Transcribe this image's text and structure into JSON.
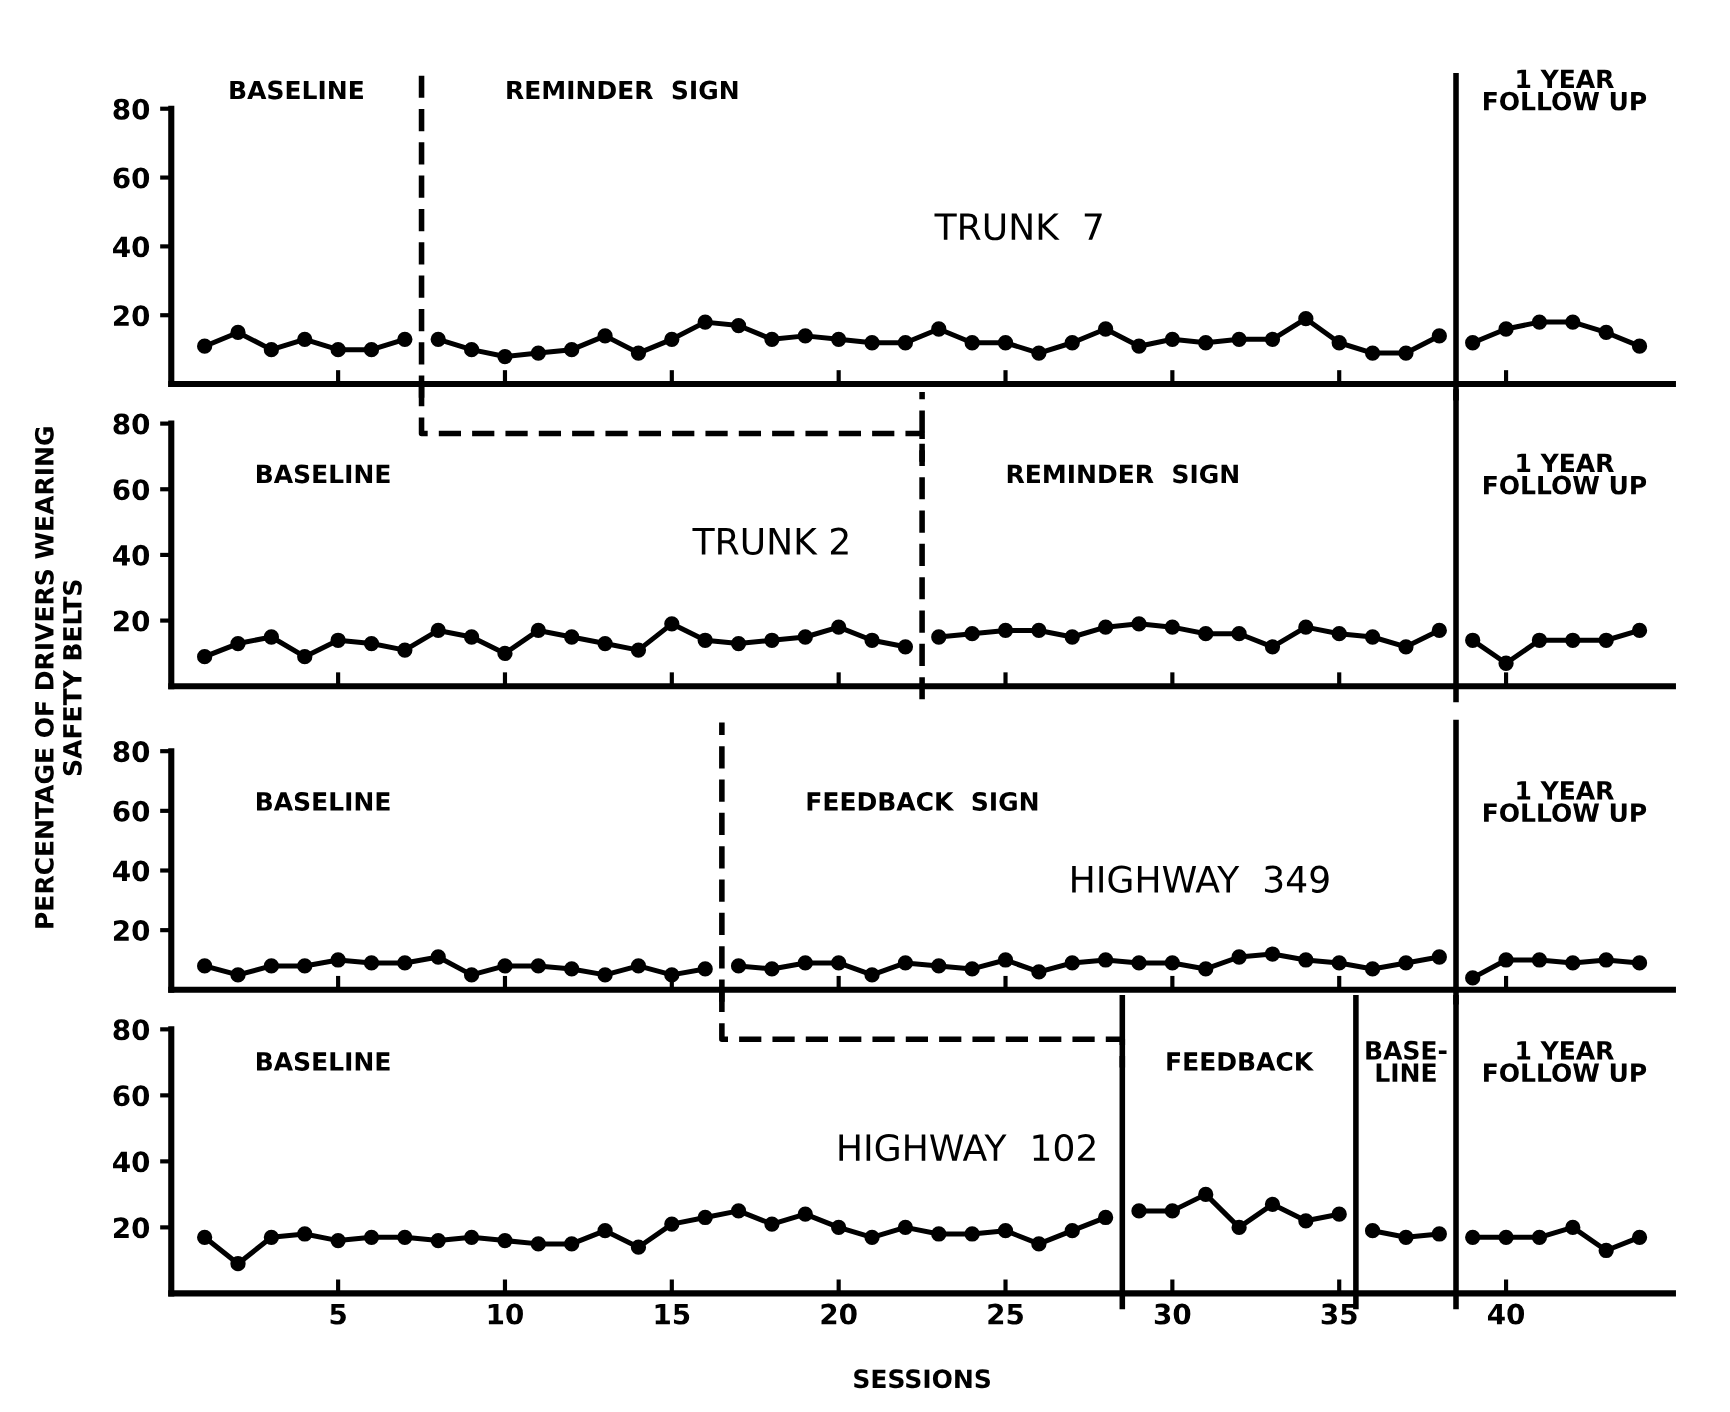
{
  "chart_data": [
    {
      "type": "line",
      "marker": "circle",
      "line_style": "solid",
      "xlim": [
        0,
        45
      ],
      "ylim": [
        0,
        80
      ],
      "xticks": [
        {
          "value": 5,
          "label": null
        },
        {
          "value": 10,
          "label": null
        },
        {
          "value": 15,
          "label": null
        },
        {
          "value": 20,
          "label": null
        },
        {
          "value": 25,
          "label": null
        },
        {
          "value": 30,
          "label": null
        },
        {
          "value": 35,
          "label": null
        },
        {
          "value": 40,
          "label": null
        }
      ],
      "yticks": [
        20,
        40,
        60,
        80
      ],
      "tick_labels": "y",
      "series": [
        {
          "color": "#000000",
          "x": [
            1,
            2,
            3,
            4,
            5,
            6,
            7
          ],
          "values": [
            11,
            15,
            10,
            13,
            10,
            10,
            13
          ]
        },
        {
          "color": "#000000",
          "x": [
            8,
            9,
            10,
            11,
            12,
            13,
            14,
            15,
            16,
            17,
            18,
            19,
            20,
            21,
            22,
            23,
            24,
            25,
            26,
            27,
            28,
            29,
            30,
            31,
            32,
            33,
            34,
            35,
            36,
            37,
            38
          ],
          "values": [
            13,
            10,
            8,
            9,
            10,
            14,
            9,
            13,
            18,
            17,
            13,
            14,
            13,
            12,
            12,
            16,
            12,
            12,
            9,
            12,
            16,
            11,
            13,
            12,
            13,
            13,
            19,
            12,
            9,
            9,
            14
          ]
        },
        {
          "color": "#000000",
          "x": [
            39,
            40,
            41,
            42,
            43,
            44
          ],
          "values": [
            12,
            16,
            18,
            18,
            15,
            11
          ]
        }
      ],
      "ref_lines": [
        {
          "axis": "x",
          "value": 7.5,
          "line_style": "dashed",
          "color": "#000000"
        },
        {
          "axis": "x",
          "value": 38.5,
          "line_style": "solid",
          "color": "#000000"
        }
      ],
      "annotations": [
        "BASELINE",
        "REMINDER  SIGN",
        "1 YEAR\nFOLLOW UP",
        "TRUNK  7"
      ]
    },
    {
      "type": "line",
      "marker": "circle",
      "line_style": "solid",
      "xlim": [
        0,
        45
      ],
      "ylim": [
        0,
        80
      ],
      "xticks": [
        {
          "value": 5,
          "label": null
        },
        {
          "value": 10,
          "label": null
        },
        {
          "value": 15,
          "label": null
        },
        {
          "value": 20,
          "label": null
        },
        {
          "value": 25,
          "label": null
        },
        {
          "value": 30,
          "label": null
        },
        {
          "value": 35,
          "label": null
        },
        {
          "value": 40,
          "label": null
        }
      ],
      "yticks": [
        20,
        40,
        60,
        80
      ],
      "tick_labels": "y",
      "ylabel": "PERCENTAGE OF DRIVERS WEARING\nSAFETY BELTS",
      "series": [
        {
          "color": "#000000",
          "x": [
            1,
            2,
            3,
            4,
            5,
            6,
            7,
            8,
            9,
            10,
            11,
            12,
            13,
            14,
            15,
            16,
            17,
            18,
            19,
            20,
            21,
            22
          ],
          "values": [
            9,
            13,
            15,
            9,
            14,
            13,
            11,
            17,
            15,
            10,
            17,
            15,
            13,
            11,
            19,
            14,
            13,
            14,
            15,
            18,
            14,
            12
          ]
        },
        {
          "color": "#000000",
          "x": [
            23,
            24,
            25,
            26,
            27,
            28,
            29,
            30,
            31,
            32,
            33,
            34,
            35,
            36,
            37,
            38
          ],
          "values": [
            15,
            16,
            17,
            17,
            15,
            18,
            19,
            18,
            16,
            16,
            12,
            18,
            16,
            15,
            12,
            17
          ]
        },
        {
          "color": "#000000",
          "x": [
            39,
            40,
            41,
            42,
            43,
            44
          ],
          "values": [
            14,
            7,
            14,
            14,
            14,
            17
          ]
        }
      ],
      "ref_lines": [
        {
          "axis": "x",
          "value": 22.5,
          "line_style": "dashed",
          "color": "#000000"
        },
        {
          "axis": "x",
          "value": 38.5,
          "line_style": "solid",
          "color": "#000000"
        }
      ],
      "annotations": [
        "BASELINE",
        "REMINDER  SIGN",
        "1 YEAR\nFOLLOW UP",
        "TRUNK 2"
      ]
    },
    {
      "type": "line",
      "marker": "circle",
      "line_style": "solid",
      "xlim": [
        0,
        45
      ],
      "ylim": [
        0,
        80
      ],
      "xticks": [
        {
          "value": 5,
          "label": null
        },
        {
          "value": 10,
          "label": null
        },
        {
          "value": 15,
          "label": null
        },
        {
          "value": 20,
          "label": null
        },
        {
          "value": 25,
          "label": null
        },
        {
          "value": 30,
          "label": null
        },
        {
          "value": 35,
          "label": null
        },
        {
          "value": 40,
          "label": null
        }
      ],
      "yticks": [
        20,
        40,
        60,
        80
      ],
      "tick_labels": "y",
      "series": [
        {
          "color": "#000000",
          "x": [
            1,
            2,
            3,
            4,
            5,
            6,
            7,
            8,
            9,
            10,
            11,
            12,
            13,
            14,
            15,
            16
          ],
          "values": [
            8,
            5,
            8,
            8,
            10,
            9,
            9,
            11,
            5,
            8,
            8,
            7,
            5,
            8,
            5,
            7
          ]
        },
        {
          "color": "#000000",
          "x": [
            17,
            18,
            19,
            20,
            21,
            22,
            23,
            24,
            25,
            26,
            27,
            28,
            29,
            30,
            31,
            32,
            33,
            34,
            35,
            36,
            37,
            38
          ],
          "values": [
            8,
            7,
            9,
            9,
            5,
            9,
            8,
            7,
            10,
            6,
            9,
            10,
            9,
            9,
            7,
            11,
            12,
            10,
            9,
            7,
            9,
            11
          ]
        },
        {
          "color": "#000000",
          "x": [
            39,
            40,
            41,
            42,
            43,
            44
          ],
          "values": [
            4,
            10,
            10,
            9,
            10,
            9
          ]
        }
      ],
      "ref_lines": [
        {
          "axis": "x",
          "value": 16.5,
          "line_style": "dashed",
          "color": "#000000"
        },
        {
          "axis": "x",
          "value": 38.5,
          "line_style": "solid",
          "color": "#000000"
        }
      ],
      "annotations": [
        "BASELINE",
        "FEEDBACK  SIGN",
        "1 YEAR\nFOLLOW UP",
        "HIGHWAY  349"
      ]
    },
    {
      "type": "line",
      "marker": "circle",
      "line_style": "solid",
      "xlim": [
        0,
        45
      ],
      "ylim": [
        0,
        80
      ],
      "xticks": [
        5,
        10,
        15,
        20,
        25,
        30,
        35,
        40
      ],
      "yticks": [
        20,
        40,
        60,
        80
      ],
      "xlabel": "SESSIONS",
      "series": [
        {
          "color": "#000000",
          "x": [
            1,
            2,
            3,
            4,
            5,
            6,
            7,
            8,
            9,
            10,
            11,
            12,
            13,
            14,
            15,
            16,
            17,
            18,
            19,
            20,
            21,
            22,
            23,
            24,
            25,
            26,
            27,
            28
          ],
          "values": [
            17,
            9,
            17,
            18,
            16,
            17,
            17,
            16,
            17,
            16,
            15,
            15,
            19,
            14,
            21,
            23,
            25,
            21,
            24,
            20,
            17,
            20,
            18,
            18,
            19,
            15,
            19,
            23
          ]
        },
        {
          "color": "#000000",
          "x": [
            29,
            30,
            31,
            32,
            33,
            34,
            35
          ],
          "values": [
            25,
            25,
            30,
            20,
            27,
            22,
            24
          ]
        },
        {
          "color": "#000000",
          "x": [
            36,
            37,
            38
          ],
          "values": [
            19,
            17,
            18
          ]
        },
        {
          "color": "#000000",
          "x": [
            39,
            40,
            41,
            42,
            43,
            44
          ],
          "values": [
            17,
            17,
            17,
            20,
            13,
            17
          ]
        }
      ],
      "ref_lines": [
        {
          "axis": "x",
          "value": 28.5,
          "line_style": "solid",
          "color": "#000000"
        },
        {
          "axis": "x",
          "value": 35.5,
          "line_style": "solid",
          "color": "#000000"
        },
        {
          "axis": "x",
          "value": 38.5,
          "line_style": "solid",
          "color": "#000000"
        }
      ],
      "annotations": [
        "BASELINE",
        "FEEDBACK",
        "BASE-\nLINE",
        "1 YEAR\nFOLLOW UP",
        "HIGHWAY  102"
      ]
    }
  ]
}
